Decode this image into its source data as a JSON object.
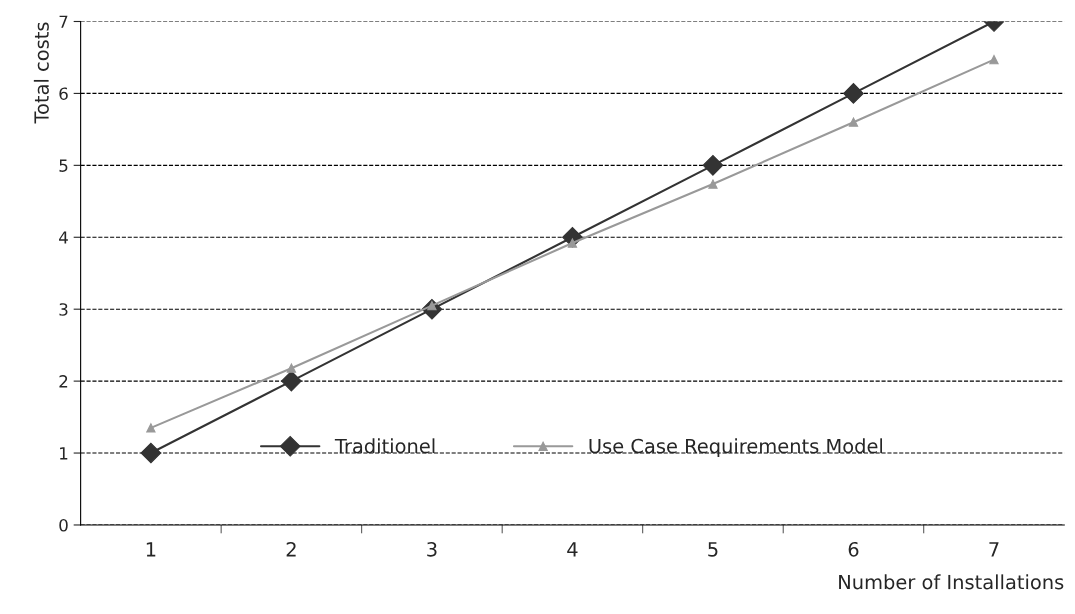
{
  "chart_data": {
    "type": "line",
    "xlabel": "Number of Installations",
    "ylabel": "Total costs",
    "categories": [
      "1",
      "2",
      "3",
      "4",
      "5",
      "6",
      "7"
    ],
    "series": [
      {
        "name": "Traditionel",
        "color": "#333333",
        "values": [
          1,
          2,
          3,
          4,
          5,
          6,
          7
        ],
        "marker": "diamond"
      },
      {
        "name": "Use Case Requirements Model",
        "color": "#999999",
        "values": [
          1.35,
          2.18,
          3.05,
          3.92,
          4.74,
          5.6,
          6.47
        ],
        "marker": "triangle"
      }
    ],
    "ylim": [
      0,
      7
    ],
    "yticks": [
      0,
      1,
      2,
      3,
      4,
      5,
      6,
      7
    ],
    "grid": "y",
    "legend": "bottom",
    "line_style": "solid"
  }
}
